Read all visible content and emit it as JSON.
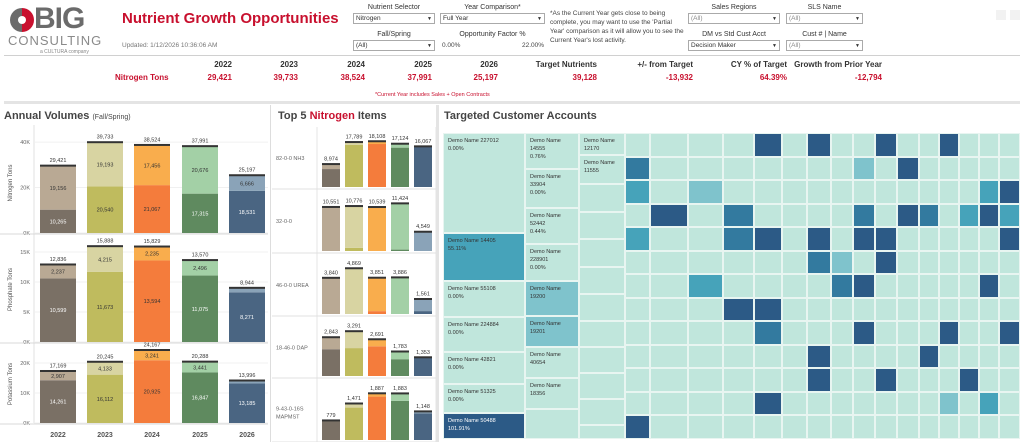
{
  "header": {
    "logo_text": "BIG",
    "logo_sub": "CONSULTING",
    "logo_tag": "a CULTURA company",
    "title": "Nutrient Growth Opportunities",
    "updated": "Updated: 1/12/2026 10:36:06 AM"
  },
  "filters": {
    "nutrient_selector": {
      "label": "Nutrient Selector",
      "value": "Nitrogen"
    },
    "year_comparison": {
      "label": "Year Comparison*",
      "value": "Full Year"
    },
    "fall_spring": {
      "label": "Fall/Spring",
      "value": "(All)"
    },
    "opportunity_factor": {
      "label": "Opportunity Factor %",
      "min": "0.00%",
      "max": "22.00%"
    },
    "sales_regions": {
      "label": "Sales Regions",
      "value": "(All)"
    },
    "sls_name": {
      "label": "SLS Name",
      "value": "(All)"
    },
    "dm_vs_std": {
      "label": "DM vs Std Cust Acct",
      "value": "Decision Maker"
    },
    "cust_name": {
      "label": "Cust # | Name",
      "value": "(All)"
    },
    "note": "*As the Current Year gets close to being complete, you may want to use the 'Partial Year' comparison as it will allow you to see the Current Year's lost activity."
  },
  "kpis": {
    "row_label": "Nitrogen Tons",
    "columns": [
      {
        "header": "2022",
        "value": "29,421"
      },
      {
        "header": "2023",
        "value": "39,733"
      },
      {
        "header": "2024",
        "value": "38,524"
      },
      {
        "header": "2025",
        "value": "37,991"
      },
      {
        "header": "2026",
        "value": "25,197"
      },
      {
        "header": "Target Nutrients",
        "value": "39,128"
      },
      {
        "header": "+/- from Target",
        "value": "-13,932"
      },
      {
        "header": "CY % of Target",
        "value": "64.39%"
      },
      {
        "header": "Growth from Prior Year",
        "value": "-12,794"
      }
    ],
    "note": "*Current Year includes Sales + Open Contracts"
  },
  "annual_volumes": {
    "title": "Annual Volumes",
    "subtitle": "(Fall/Spring)"
  },
  "top5": {
    "title_pre": "Top 5 ",
    "title_highlight": "Nitrogen",
    "title_post": " Items"
  },
  "treemap": {
    "title": "Targeted Customer Accounts",
    "labeled_cells": [
      {
        "name": "Demo Name 227012",
        "pct": "0.00%"
      },
      {
        "name": "Demo Name 14405",
        "pct": "55.11%"
      },
      {
        "name": "Demo Name 55108",
        "pct": "0.00%"
      },
      {
        "name": "Demo Name 224884",
        "pct": "0.00%"
      },
      {
        "name": "Demo Name 42821",
        "pct": "0.00%"
      },
      {
        "name": "Demo Name 51325",
        "pct": "0.00%"
      },
      {
        "name": "Demo Name 50488",
        "pct": "101.91%"
      },
      {
        "name": "Demo Name 14555",
        "pct": "0.76%"
      },
      {
        "name": "Demo Name 33904",
        "pct": "0.00%"
      },
      {
        "name": "Demo Name 52442",
        "pct": "0.44%"
      },
      {
        "name": "Demo Name 228901",
        "pct": "0.00%"
      },
      {
        "name": "Demo Name 19200",
        "pct": ""
      },
      {
        "name": "Demo Name 19201",
        "pct": ""
      },
      {
        "name": "Demo Name 40654",
        "pct": ""
      },
      {
        "name": "Demo Name 18356",
        "pct": ""
      },
      {
        "name": "Demo Name 12170",
        "pct": ""
      },
      {
        "name": "Demo Name 11555",
        "pct": ""
      }
    ]
  },
  "colors": {
    "brand_red": "#c8102e",
    "2022": [
      "#7a7065",
      "#b9a994"
    ],
    "2023": [
      "#bfbb5e",
      "#d8d4a2"
    ],
    "2024": [
      "#f47c3c",
      "#f9ad4d"
    ],
    "2025": [
      "#5f8a5f",
      "#a3d0a6"
    ],
    "2026": [
      "#4a6582",
      "#8aa3b8"
    ],
    "treemap": [
      "#c0e6dc",
      "#7fc3cc",
      "#46a3ba",
      "#337a9f",
      "#2c5a86"
    ]
  },
  "chart_data": [
    {
      "type": "bar",
      "title": "Annual Volumes (Fall/Spring)",
      "stacked": true,
      "categories": [
        "2022",
        "2023",
        "2024",
        "2025",
        "2026"
      ],
      "panels": [
        {
          "ylabel": "Nitrogen Tons",
          "yticks": [
            "0K",
            "20K",
            "40K"
          ],
          "ylim": [
            0,
            44000
          ],
          "tick_values": [
            0,
            20000,
            40000
          ],
          "series": [
            {
              "name": "Spring",
              "values": [
                10265,
                20540,
                21067,
                17315,
                18531
              ]
            },
            {
              "name": "Fall",
              "values": [
                19156,
                19193,
                17456,
                20676,
                6666
              ]
            }
          ],
          "totals": [
            "29,421",
            "39,733",
            "38,524",
            "37,991",
            "25,197"
          ],
          "totals_num": [
            29421,
            39733,
            38524,
            37991,
            25197
          ],
          "seg_labels": [
            [
              "10,265",
              "20,540",
              "21,067",
              "17,315",
              "18,531"
            ],
            [
              "19,156",
              "19,193",
              "17,456",
              "20,676",
              "6,666"
            ]
          ]
        },
        {
          "ylabel": "Phosphate Tons",
          "yticks": [
            "0K",
            "5K",
            "10K",
            "15K"
          ],
          "ylim": [
            0,
            17500
          ],
          "tick_values": [
            0,
            5000,
            10000,
            15000
          ],
          "series": [
            {
              "name": "Spring",
              "values": [
                10599,
                11673,
                13594,
                11075,
                8271
              ]
            },
            {
              "name": "Fall",
              "values": [
                2237,
                4215,
                2235,
                2496,
                673
              ]
            }
          ],
          "totals": [
            "12,836",
            "15,888",
            "15,829",
            "13,570",
            "8,944"
          ],
          "totals_num": [
            12836,
            15888,
            15829,
            13570,
            8944
          ],
          "seg_labels": [
            [
              "10,599",
              "11,673",
              "13,594",
              "11,075",
              "8,271"
            ],
            [
              "2,237",
              "4,215",
              "2,235",
              "2,496",
              ""
            ]
          ]
        },
        {
          "ylabel": "Potassium Tons",
          "yticks": [
            "0K",
            "10K",
            "20K"
          ],
          "ylim": [
            0,
            26000
          ],
          "tick_values": [
            0,
            10000,
            20000
          ],
          "series": [
            {
              "name": "Spring",
              "values": [
                14261,
                16112,
                20925,
                16847,
                13185
              ]
            },
            {
              "name": "Fall",
              "values": [
                2907,
                4133,
                3241,
                3441,
                811
              ]
            }
          ],
          "totals": [
            "17,169",
            "20,245",
            "24,167",
            "20,288",
            "13,996"
          ],
          "totals_num": [
            17169,
            20245,
            24167,
            20288,
            13996
          ],
          "seg_labels": [
            [
              "14,261",
              "16,112",
              "20,925",
              "16,847",
              "13,185"
            ],
            [
              "2,907",
              "4,133",
              "3,241",
              "3,441",
              ""
            ]
          ]
        }
      ],
      "xlabels": [
        "2022",
        "2023",
        "2024",
        "2025",
        "2026"
      ]
    },
    {
      "type": "bar",
      "title": "Top 5 Nitrogen Items",
      "categories": [
        "2022",
        "2023",
        "2024",
        "2025",
        "2026"
      ],
      "rows": [
        {
          "item": "82-0-0 NH3",
          "totals": [
            8974,
            17789,
            18108,
            17124,
            16067
          ],
          "labels": [
            "8,974",
            "17,789",
            "18,108",
            "17,124",
            "16,067"
          ],
          "fall_share": [
            0.2,
            0.05,
            0.05,
            0.08,
            0.0
          ]
        },
        {
          "item": "32-0-0",
          "totals": [
            10551,
            10776,
            10539,
            11424,
            4549
          ],
          "labels": [
            "10,551",
            "10,776",
            "10,539",
            "11,424",
            "4,549"
          ],
          "fall_share": [
            1.0,
            0.93,
            1.0,
            0.97,
            1.0
          ]
        },
        {
          "item": "46-0-0 UREA",
          "totals": [
            3840,
            4869,
            3851,
            3886,
            1561
          ],
          "labels": [
            "3,840",
            "4,869",
            "3,851",
            "3,886",
            "1,561"
          ],
          "fall_share": [
            1.0,
            1.0,
            0.92,
            1.0,
            0.8
          ]
        },
        {
          "item": "18-46-0 DAP",
          "totals": [
            2843,
            3291,
            2691,
            1783,
            1353
          ],
          "labels": [
            "2,843",
            "3,291",
            "2,691",
            "1,783",
            "1,353"
          ],
          "fall_share": [
            0.3,
            0.37,
            0.18,
            0.3,
            0.0
          ]
        },
        {
          "item": "9-43-0-16S MAPMST",
          "totals": [
            779,
            1471,
            1887,
            1883,
            1148
          ],
          "labels": [
            "779",
            "1,471",
            "1,887",
            "1,883",
            "1,148"
          ],
          "fall_share": [
            0.0,
            0.1,
            0.06,
            0.15,
            0.05
          ]
        }
      ]
    }
  ]
}
